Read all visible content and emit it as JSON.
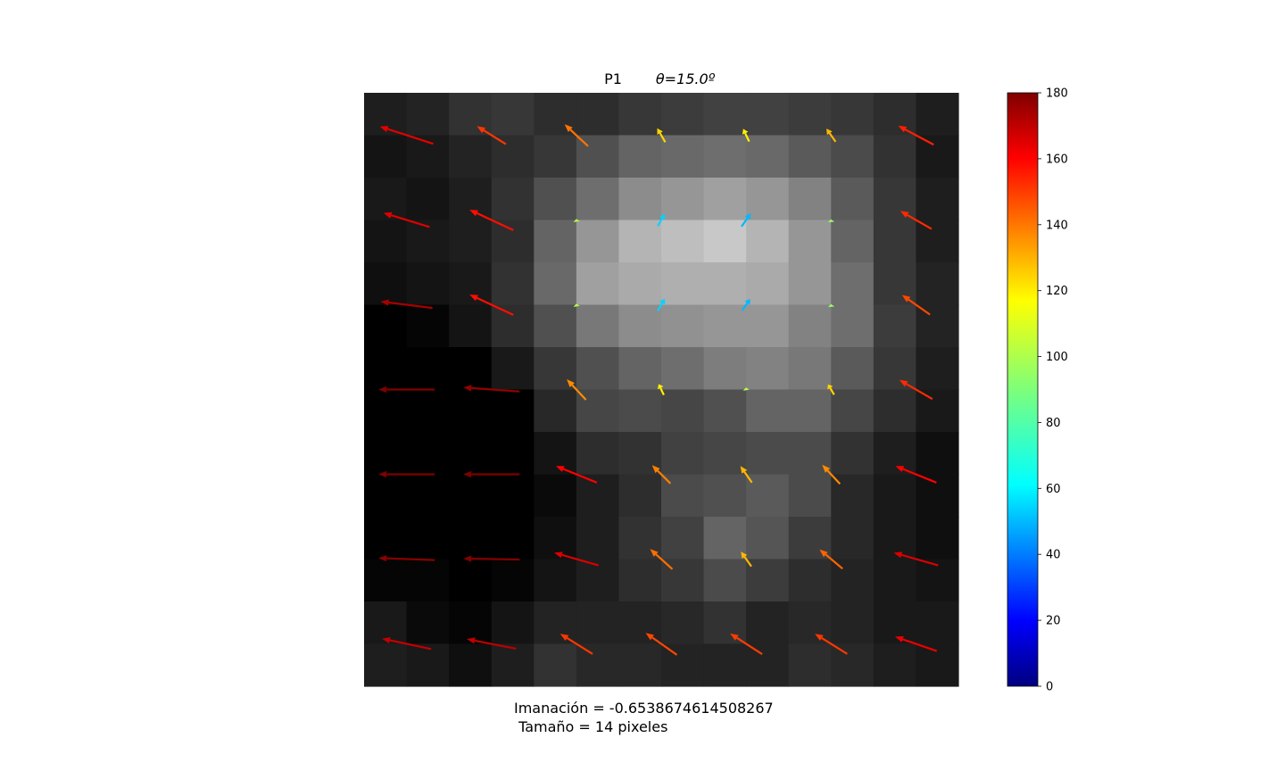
{
  "title": {
    "label": "P1",
    "theta": "θ=15.0º"
  },
  "caption": {
    "magnetization": "Imanación = -0.6538674614508267",
    "size": " Tamaño = 14 pixeles"
  },
  "chart_data": {
    "type": "heatmap",
    "grid_size": 14,
    "intensity_grid": [
      [
        30,
        35,
        50,
        55,
        45,
        45,
        55,
        60,
        65,
        65,
        60,
        55,
        45,
        30
      ],
      [
        20,
        25,
        35,
        45,
        55,
        80,
        100,
        105,
        110,
        105,
        90,
        75,
        50,
        25
      ],
      [
        25,
        20,
        30,
        50,
        80,
        110,
        140,
        150,
        160,
        150,
        130,
        90,
        55,
        30
      ],
      [
        20,
        25,
        30,
        45,
        100,
        150,
        180,
        190,
        200,
        180,
        150,
        100,
        55,
        30
      ],
      [
        15,
        20,
        25,
        50,
        105,
        160,
        170,
        175,
        175,
        170,
        150,
        110,
        55,
        35
      ],
      [
        0,
        5,
        20,
        45,
        80,
        120,
        140,
        145,
        150,
        150,
        130,
        110,
        60,
        35
      ],
      [
        0,
        0,
        0,
        25,
        55,
        80,
        100,
        110,
        125,
        130,
        120,
        90,
        55,
        30
      ],
      [
        0,
        0,
        0,
        0,
        40,
        70,
        75,
        70,
        80,
        100,
        100,
        70,
        45,
        25
      ],
      [
        0,
        0,
        0,
        0,
        20,
        45,
        50,
        65,
        70,
        75,
        75,
        50,
        30,
        15
      ],
      [
        0,
        0,
        0,
        0,
        10,
        30,
        45,
        75,
        80,
        90,
        75,
        40,
        25,
        15
      ],
      [
        0,
        0,
        0,
        0,
        15,
        30,
        50,
        65,
        100,
        85,
        60,
        40,
        25,
        15
      ],
      [
        5,
        5,
        0,
        5,
        20,
        30,
        45,
        55,
        75,
        60,
        45,
        35,
        25,
        20
      ],
      [
        25,
        10,
        5,
        20,
        35,
        35,
        35,
        40,
        50,
        35,
        40,
        35,
        25,
        25
      ],
      [
        30,
        25,
        15,
        30,
        50,
        40,
        40,
        35,
        35,
        35,
        45,
        40,
        30,
        25
      ]
    ],
    "colorbar": {
      "colormap": "jet",
      "range": [
        0,
        180
      ],
      "ticks": [
        "0",
        "20",
        "40",
        "60",
        "80",
        "100",
        "120",
        "140",
        "160",
        "180"
      ]
    },
    "vectors": {
      "rows": [
        [
          {
            "len": 1.4,
            "angle": 162
          },
          {
            "len": 0.85,
            "angle": 148
          },
          {
            "len": 0.8,
            "angle": 137
          },
          {
            "len": 0.4,
            "angle": 120
          },
          {
            "len": 0.35,
            "angle": 115
          },
          {
            "len": 0.4,
            "angle": 125
          },
          {
            "len": 1.0,
            "angle": 152
          }
        ],
        [
          {
            "len": 1.2,
            "angle": 163
          },
          {
            "len": 1.2,
            "angle": 155
          },
          {
            "len": 0.05,
            "angle": 100
          },
          {
            "len": 0.35,
            "angle": 60
          },
          {
            "len": 0.4,
            "angle": 55
          },
          {
            "len": 0.03,
            "angle": 95
          },
          {
            "len": 0.9,
            "angle": 150
          }
        ],
        [
          {
            "len": 1.3,
            "angle": 173
          },
          {
            "len": 1.2,
            "angle": 155
          },
          {
            "len": 0.05,
            "angle": 100
          },
          {
            "len": 0.35,
            "angle": 60
          },
          {
            "len": 0.35,
            "angle": 55
          },
          {
            "len": 0.03,
            "angle": 95
          },
          {
            "len": 0.85,
            "angle": 145
          }
        ],
        [
          {
            "len": 1.4,
            "angle": 180
          },
          {
            "len": 1.4,
            "angle": 176
          },
          {
            "len": 0.7,
            "angle": 133
          },
          {
            "len": 0.3,
            "angle": 115
          },
          {
            "len": 0.1,
            "angle": 100
          },
          {
            "len": 0.3,
            "angle": 120
          },
          {
            "len": 0.95,
            "angle": 150
          }
        ],
        [
          {
            "len": 1.4,
            "angle": 180
          },
          {
            "len": 1.4,
            "angle": 180
          },
          {
            "len": 1.1,
            "angle": 158
          },
          {
            "len": 0.65,
            "angle": 135
          },
          {
            "len": 0.5,
            "angle": 125
          },
          {
            "len": 0.65,
            "angle": 133
          },
          {
            "len": 1.1,
            "angle": 158
          }
        ],
        [
          {
            "len": 1.4,
            "angle": 178
          },
          {
            "len": 1.4,
            "angle": 179
          },
          {
            "len": 1.15,
            "angle": 164
          },
          {
            "len": 0.75,
            "angle": 138
          },
          {
            "len": 0.45,
            "angle": 125
          },
          {
            "len": 0.75,
            "angle": 140
          },
          {
            "len": 1.15,
            "angle": 164
          }
        ],
        [
          {
            "len": 1.25,
            "angle": 168
          },
          {
            "len": 1.25,
            "angle": 169
          },
          {
            "len": 0.95,
            "angle": 148
          },
          {
            "len": 0.95,
            "angle": 145
          },
          {
            "len": 0.95,
            "angle": 147
          },
          {
            "len": 0.95,
            "angle": 148
          },
          {
            "len": 1.1,
            "angle": 161
          }
        ]
      ]
    }
  }
}
